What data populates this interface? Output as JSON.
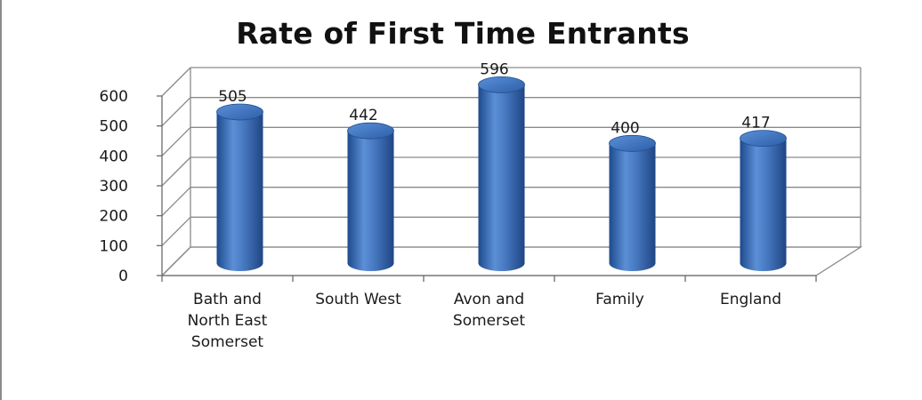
{
  "chart_data": {
    "type": "bar",
    "title": "Rate of First Time Entrants",
    "categories": [
      [
        "Bath and",
        "North East",
        "Somerset"
      ],
      [
        "South West"
      ],
      [
        "Avon and",
        "Somerset"
      ],
      [
        "Family"
      ],
      [
        "England"
      ]
    ],
    "values": [
      505,
      442,
      596,
      400,
      417
    ],
    "data_labels": [
      "505",
      "442",
      "596",
      "400",
      "417"
    ],
    "ylim": [
      0,
      600
    ],
    "yticks": [
      0,
      100,
      200,
      300,
      400,
      500,
      600
    ],
    "xlabel": "",
    "ylabel": "",
    "grid": true,
    "legend": "none",
    "style": "3d-cylinder",
    "colors": {
      "bar": "#4a7cc4",
      "bar_dark": "#1f4f94",
      "bar_top": "#3a6fc0",
      "grid": "#8a8a8a"
    }
  }
}
